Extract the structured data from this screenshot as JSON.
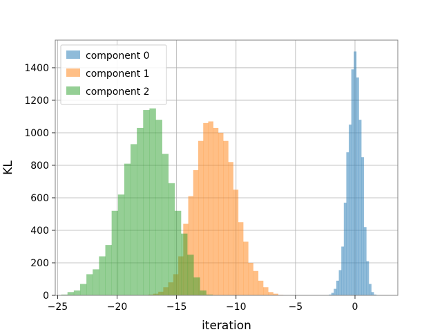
{
  "chart_data": {
    "type": "histogram",
    "xlabel": "iteration",
    "ylabel": "KL",
    "xlim": [
      -25.2,
      3.6
    ],
    "ylim": [
      0,
      1570
    ],
    "xticks": [
      -25,
      -20,
      -15,
      -10,
      -5,
      0
    ],
    "yticks": [
      0,
      200,
      400,
      600,
      800,
      1000,
      1200,
      1400
    ],
    "grid": true,
    "legend_position": "top-left",
    "bin_width": 0.42,
    "series": [
      {
        "name": "component 0",
        "color": "#1f77b4",
        "alpha": 0.5,
        "bin_start": -2.2,
        "bin_width": 0.21,
        "counts": [
          5,
          15,
          40,
          90,
          155,
          300,
          570,
          880,
          1050,
          1390,
          1500,
          1340,
          1080,
          850,
          420,
          210,
          70,
          20,
          5
        ]
      },
      {
        "name": "component 1",
        "color": "#ff7f0e",
        "alpha": 0.5,
        "bin_start": -17.8,
        "bin_width": 0.42,
        "counts": [
          2,
          5,
          10,
          22,
          50,
          80,
          130,
          240,
          440,
          610,
          770,
          950,
          1060,
          1070,
          1030,
          1000,
          950,
          820,
          650,
          450,
          330,
          200,
          150,
          90,
          50,
          20,
          10,
          3
        ]
      },
      {
        "name": "component 2",
        "color": "#2ca02c",
        "alpha": 0.5,
        "bin_start": -24.7,
        "bin_width": 0.53,
        "counts": [
          5,
          20,
          30,
          70,
          130,
          160,
          240,
          310,
          520,
          620,
          810,
          930,
          1030,
          1140,
          1150,
          1080,
          870,
          690,
          520,
          380,
          250,
          110,
          30,
          5
        ]
      }
    ]
  }
}
